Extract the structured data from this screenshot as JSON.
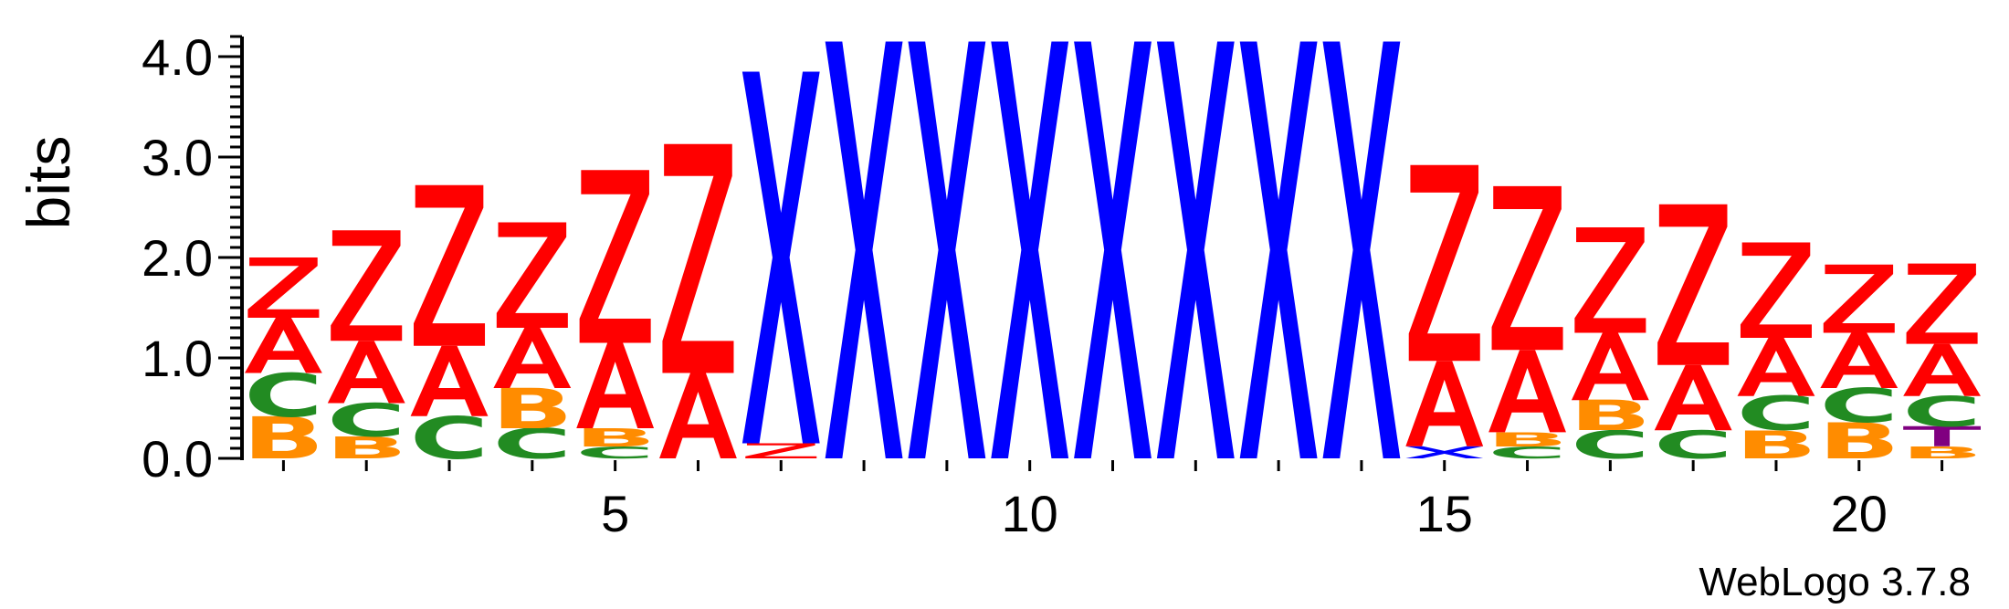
{
  "chart_data": {
    "type": "sequence-logo",
    "ylabel": "bits",
    "ylim": [
      0,
      4.2
    ],
    "y_ticks": [
      "0.0",
      "1.0",
      "2.0",
      "3.0",
      "4.0"
    ],
    "x_ticks": [
      {
        "position": 5,
        "label": "5"
      },
      {
        "position": 10,
        "label": "10"
      },
      {
        "position": 15,
        "label": "15"
      },
      {
        "position": 20,
        "label": "20"
      }
    ],
    "colors": {
      "Z": "#ff0000",
      "A": "#ff0000",
      "X": "#0000ff",
      "C": "#228b22",
      "B": "#ff8c00",
      "T": "#800080"
    },
    "positions": [
      {
        "position": 1,
        "stack": [
          {
            "letter": "B",
            "bits": 0.42
          },
          {
            "letter": "C",
            "bits": 0.43
          },
          {
            "letter": "A",
            "bits": 0.55
          },
          {
            "letter": "Z",
            "bits": 0.6
          }
        ]
      },
      {
        "position": 2,
        "stack": [
          {
            "letter": "B",
            "bits": 0.22
          },
          {
            "letter": "C",
            "bits": 0.33
          },
          {
            "letter": "A",
            "bits": 0.62
          },
          {
            "letter": "Z",
            "bits": 1.1
          }
        ]
      },
      {
        "position": 3,
        "stack": [
          {
            "letter": "C",
            "bits": 0.42
          },
          {
            "letter": "A",
            "bits": 0.7
          },
          {
            "letter": "Z",
            "bits": 1.6
          }
        ]
      },
      {
        "position": 4,
        "stack": [
          {
            "letter": "C",
            "bits": 0.3
          },
          {
            "letter": "B",
            "bits": 0.4
          },
          {
            "letter": "A",
            "bits": 0.6
          },
          {
            "letter": "Z",
            "bits": 1.05
          }
        ]
      },
      {
        "position": 5,
        "stack": [
          {
            "letter": "C",
            "bits": 0.12
          },
          {
            "letter": "B",
            "bits": 0.18
          },
          {
            "letter": "A",
            "bits": 0.85
          },
          {
            "letter": "Z",
            "bits": 1.72
          }
        ]
      },
      {
        "position": 6,
        "stack": [
          {
            "letter": "A",
            "bits": 0.85
          },
          {
            "letter": "Z",
            "bits": 2.28
          }
        ]
      },
      {
        "position": 7,
        "stack": [
          {
            "letter": "Z",
            "bits": 0.15
          },
          {
            "letter": "X",
            "bits": 3.7
          }
        ]
      },
      {
        "position": 8,
        "stack": [
          {
            "letter": "X",
            "bits": 4.15
          }
        ]
      },
      {
        "position": 9,
        "stack": [
          {
            "letter": "X",
            "bits": 4.15
          }
        ]
      },
      {
        "position": 10,
        "stack": [
          {
            "letter": "X",
            "bits": 4.15
          }
        ]
      },
      {
        "position": 11,
        "stack": [
          {
            "letter": "X",
            "bits": 4.15
          }
        ]
      },
      {
        "position": 12,
        "stack": [
          {
            "letter": "X",
            "bits": 4.15
          }
        ]
      },
      {
        "position": 13,
        "stack": [
          {
            "letter": "X",
            "bits": 4.15
          }
        ]
      },
      {
        "position": 14,
        "stack": [
          {
            "letter": "X",
            "bits": 4.15
          }
        ]
      },
      {
        "position": 15,
        "stack": [
          {
            "letter": "X",
            "bits": 0.12
          },
          {
            "letter": "A",
            "bits": 0.85
          },
          {
            "letter": "Z",
            "bits": 1.95
          }
        ]
      },
      {
        "position": 16,
        "stack": [
          {
            "letter": "C",
            "bits": 0.12
          },
          {
            "letter": "B",
            "bits": 0.14
          },
          {
            "letter": "A",
            "bits": 0.82
          },
          {
            "letter": "Z",
            "bits": 1.63
          }
        ]
      },
      {
        "position": 17,
        "stack": [
          {
            "letter": "C",
            "bits": 0.28
          },
          {
            "letter": "B",
            "bits": 0.3
          },
          {
            "letter": "A",
            "bits": 0.67
          },
          {
            "letter": "Z",
            "bits": 1.05
          }
        ]
      },
      {
        "position": 18,
        "stack": [
          {
            "letter": "C",
            "bits": 0.28
          },
          {
            "letter": "A",
            "bits": 0.65
          },
          {
            "letter": "Z",
            "bits": 1.6
          }
        ]
      },
      {
        "position": 19,
        "stack": [
          {
            "letter": "B",
            "bits": 0.28
          },
          {
            "letter": "C",
            "bits": 0.34
          },
          {
            "letter": "A",
            "bits": 0.58
          },
          {
            "letter": "Z",
            "bits": 0.95
          }
        ]
      },
      {
        "position": 20,
        "stack": [
          {
            "letter": "B",
            "bits": 0.36
          },
          {
            "letter": "C",
            "bits": 0.34
          },
          {
            "letter": "A",
            "bits": 0.55
          },
          {
            "letter": "Z",
            "bits": 0.68
          }
        ]
      },
      {
        "position": 21,
        "stack": [
          {
            "letter": "B",
            "bits": 0.12
          },
          {
            "letter": "T",
            "bits": 0.2
          },
          {
            "letter": "C",
            "bits": 0.3
          },
          {
            "letter": "A",
            "bits": 0.52
          },
          {
            "letter": "Z",
            "bits": 0.8
          }
        ]
      }
    ]
  },
  "footer": {
    "credit": "WebLogo 3.7.8"
  }
}
